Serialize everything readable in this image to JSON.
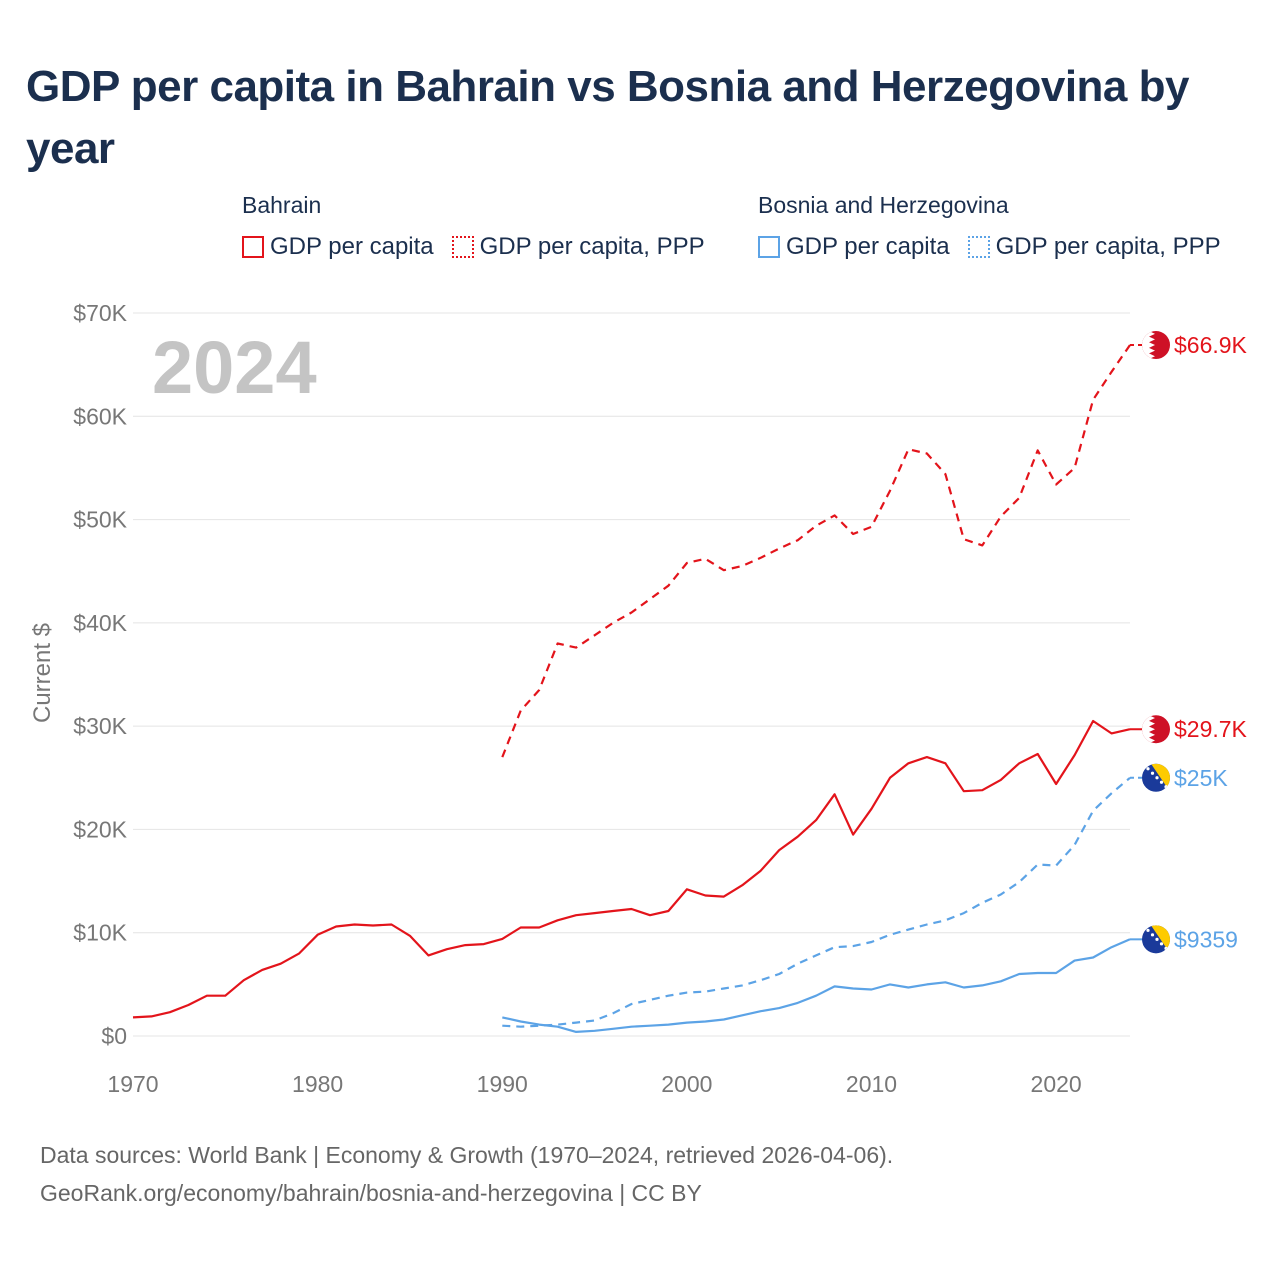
{
  "title": "GDP per capita in Bahrain vs Bosnia and Herzegovina by year",
  "year_label": "2024",
  "legend": {
    "groups": [
      {
        "name": "Bahrain",
        "color": "#e3141b",
        "items": [
          {
            "label": "GDP per capita",
            "style": "solid"
          },
          {
            "label": "GDP per capita, PPP",
            "style": "dotted"
          }
        ]
      },
      {
        "name": "Bosnia and Herzegovina",
        "color": "#5ca3e6",
        "items": [
          {
            "label": "GDP per capita",
            "style": "solid"
          },
          {
            "label": "GDP per capita, PPP",
            "style": "dotted"
          }
        ]
      }
    ]
  },
  "footer": {
    "line1": "Data sources: World Bank | Economy & Growth (1970–2024, retrieved 2026-04-06).",
    "line2": "GeoRank.org/economy/bahrain/bosnia-and-herzegovina | CC BY"
  },
  "chart_data": {
    "type": "line",
    "title": "GDP per capita in Bahrain vs Bosnia and Herzegovina by year",
    "xlabel": "",
    "ylabel": "Current $",
    "xlim": [
      1970,
      2024
    ],
    "ylim": [
      0,
      70000
    ],
    "x_ticks": [
      1970,
      1980,
      1990,
      2000,
      2010,
      2020
    ],
    "y_ticks": [
      0,
      10000,
      20000,
      30000,
      40000,
      50000,
      60000,
      70000
    ],
    "y_tick_labels": [
      "$0",
      "$10K",
      "$20K",
      "$30K",
      "$40K",
      "$50K",
      "$60K",
      "$70K"
    ],
    "grid": true,
    "series": [
      {
        "name": "Bahrain — GDP per capita",
        "country": "Bahrain",
        "color": "#e3141b",
        "dash": "solid",
        "end_label": "$29.7K",
        "start_year": 1970,
        "values": [
          1800,
          1900,
          2300,
          3000,
          3900,
          3900,
          5400,
          6400,
          7000,
          8000,
          9800,
          10600,
          10800,
          10700,
          10800,
          9700,
          7800,
          8400,
          8800,
          8900,
          9400,
          10500,
          10500,
          11200,
          11700,
          11900,
          12100,
          12300,
          11700,
          12100,
          14200,
          13600,
          13500,
          14600,
          16000,
          18000,
          19300,
          20900,
          23400,
          19500,
          22000,
          25000,
          26400,
          27000,
          26400,
          23700,
          23800,
          24800,
          26400,
          27300,
          24400,
          27200,
          30500,
          29300,
          29700
        ]
      },
      {
        "name": "Bahrain — GDP per capita, PPP",
        "country": "Bahrain",
        "color": "#e3141b",
        "dash": "dashed",
        "end_label": "$66.9K",
        "start_year": 1990,
        "values": [
          27000,
          31500,
          33500,
          38000,
          37600,
          38800,
          40000,
          41000,
          42300,
          43600,
          45800,
          46200,
          45100,
          45500,
          46300,
          47200,
          48000,
          49400,
          50400,
          48600,
          49300,
          52800,
          56800,
          56400,
          54400,
          48100,
          47500,
          50300,
          52100,
          56700,
          53400,
          55000,
          61600,
          64300,
          66900
        ]
      },
      {
        "name": "Bosnia and Herzegovina — GDP per capita",
        "country": "Bosnia and Herzegovina",
        "color": "#5ca3e6",
        "dash": "solid",
        "end_label": "$9359",
        "start_year": 1990,
        "values": [
          1800,
          1400,
          1100,
          900,
          400,
          500,
          700,
          900,
          1000,
          1100,
          1300,
          1400,
          1600,
          2000,
          2400,
          2700,
          3200,
          3900,
          4800,
          4600,
          4500,
          5000,
          4700,
          5000,
          5200,
          4700,
          4900,
          5300,
          6000,
          6100,
          6100,
          7300,
          7600,
          8600,
          9359
        ]
      },
      {
        "name": "Bosnia and Herzegovina — GDP per capita, PPP",
        "country": "Bosnia and Herzegovina",
        "color": "#5ca3e6",
        "dash": "dashed",
        "end_label": "$25K",
        "start_year": 1990,
        "values": [
          1000,
          900,
          1000,
          1100,
          1300,
          1500,
          2200,
          3100,
          3500,
          3900,
          4200,
          4300,
          4600,
          4900,
          5400,
          6000,
          7000,
          7800,
          8600,
          8700,
          9100,
          9800,
          10300,
          10800,
          11200,
          11900,
          12900,
          13700,
          14900,
          16600,
          16500,
          18500,
          21800,
          23500,
          25000
        ]
      }
    ]
  }
}
